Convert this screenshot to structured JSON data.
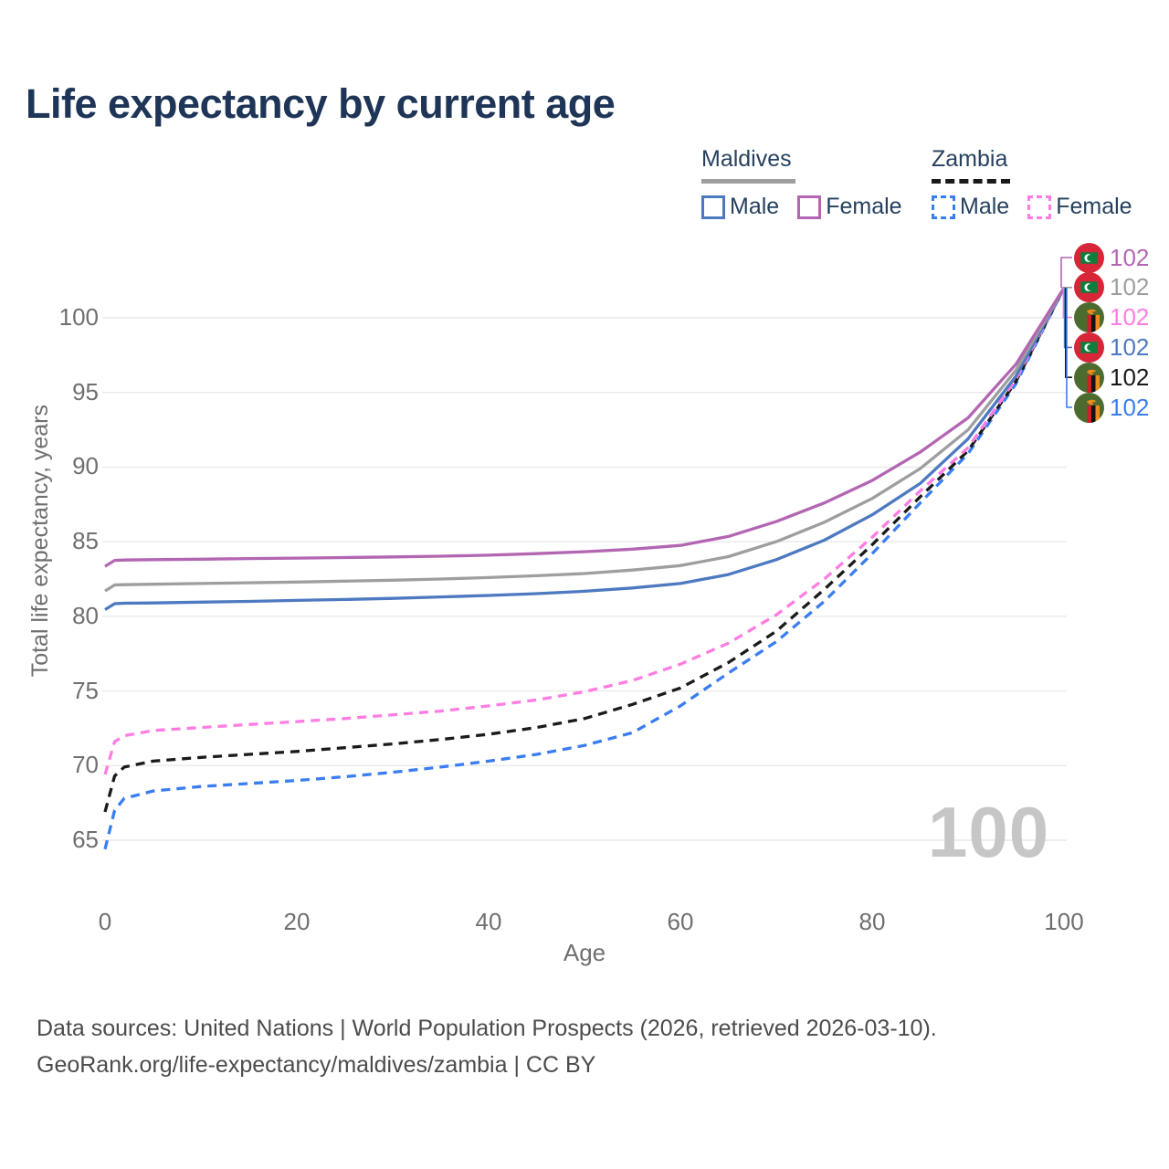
{
  "title": "Life expectancy by current age",
  "legend": {
    "groups": [
      {
        "label": "Maldives",
        "line_style": "solid",
        "line_color": "#9e9e9e",
        "items": [
          {
            "label": "Male",
            "color": "#4d79c0",
            "dashed": false
          },
          {
            "label": "Female",
            "color": "#b266b2",
            "dashed": false
          }
        ]
      },
      {
        "label": "Zambia",
        "line_style": "dashed",
        "line_color": "#1a1a1a",
        "items": [
          {
            "label": "Male",
            "color": "#3a7df0",
            "dashed": true
          },
          {
            "label": "Female",
            "color": "#ff7de2",
            "dashed": true
          }
        ]
      }
    ]
  },
  "chart_data": {
    "type": "line",
    "title": "Life expectancy by current age",
    "xlabel": "Age",
    "ylabel": "Total life expectancy, years",
    "xlim": [
      0,
      100
    ],
    "ylim": [
      63.5,
      102.5
    ],
    "x_ticks": [
      0,
      20,
      40,
      60,
      80,
      100
    ],
    "y_ticks": [
      65,
      70,
      75,
      80,
      85,
      90,
      95,
      100
    ],
    "grid": "horizontal",
    "legend_position": "top-right",
    "x": [
      0,
      1,
      2,
      5,
      10,
      15,
      20,
      25,
      30,
      35,
      40,
      45,
      50,
      55,
      60,
      65,
      70,
      75,
      80,
      85,
      90,
      95,
      100
    ],
    "series": [
      {
        "name": "Maldives Female",
        "country": "Maldives",
        "sex": "Female",
        "color": "#b266b2",
        "dashed": false,
        "values": [
          83.35,
          83.75,
          83.77,
          83.8,
          83.83,
          83.87,
          83.9,
          83.94,
          83.98,
          84.03,
          84.1,
          84.2,
          84.33,
          84.5,
          84.75,
          85.35,
          86.35,
          87.6,
          89.1,
          91.0,
          93.3,
          96.9,
          102
        ]
      },
      {
        "name": "Maldives Both sexes",
        "country": "Maldives",
        "sex": "Both",
        "color": "#9e9e9e",
        "dashed": false,
        "values": [
          81.7,
          82.1,
          82.12,
          82.15,
          82.2,
          82.25,
          82.3,
          82.36,
          82.42,
          82.5,
          82.6,
          82.72,
          82.87,
          83.1,
          83.4,
          84.0,
          85.0,
          86.3,
          87.9,
          89.9,
          92.5,
          96.5,
          102
        ]
      },
      {
        "name": "Maldives Male",
        "country": "Maldives",
        "sex": "Male",
        "color": "#4d79c0",
        "dashed": false,
        "values": [
          80.45,
          80.85,
          80.88,
          80.9,
          80.95,
          81.0,
          81.07,
          81.13,
          81.2,
          81.3,
          81.4,
          81.52,
          81.68,
          81.9,
          82.2,
          82.8,
          83.8,
          85.1,
          86.8,
          88.9,
          91.9,
          96.1,
          102
        ]
      },
      {
        "name": "Zambia Female",
        "country": "Zambia",
        "sex": "Female",
        "color": "#ff7de2",
        "dashed": true,
        "values": [
          69.4,
          71.6,
          72.0,
          72.35,
          72.55,
          72.75,
          72.95,
          73.15,
          73.4,
          73.65,
          74.0,
          74.4,
          74.95,
          75.7,
          76.8,
          78.2,
          80.1,
          82.5,
          85.3,
          88.4,
          91.3,
          95.9,
          102
        ]
      },
      {
        "name": "Zambia Both sexes",
        "country": "Zambia",
        "sex": "Both",
        "color": "#1a1a1a",
        "dashed": true,
        "values": [
          66.9,
          69.3,
          69.9,
          70.3,
          70.55,
          70.75,
          70.95,
          71.2,
          71.45,
          71.75,
          72.1,
          72.55,
          73.15,
          74.1,
          75.2,
          76.9,
          79.0,
          81.8,
          84.8,
          88.0,
          91.1,
          95.75,
          102
        ]
      },
      {
        "name": "Zambia Male",
        "country": "Zambia",
        "sex": "Male",
        "color": "#3a7df0",
        "dashed": true,
        "values": [
          64.4,
          67.0,
          67.8,
          68.3,
          68.6,
          68.8,
          69.0,
          69.25,
          69.55,
          69.9,
          70.3,
          70.75,
          71.35,
          72.2,
          74.0,
          76.2,
          78.3,
          81.0,
          84.2,
          87.6,
          90.9,
          95.6,
          102
        ]
      }
    ],
    "end_labels": [
      {
        "country": "Maldives",
        "sex": "Female",
        "value": "102",
        "color": "#b266b2"
      },
      {
        "country": "Maldives",
        "sex": "Both",
        "value": "102",
        "color": "#9e9e9e"
      },
      {
        "country": "Zambia",
        "sex": "Female",
        "value": "102",
        "color": "#ff7de2"
      },
      {
        "country": "Maldives",
        "sex": "Male",
        "value": "102",
        "color": "#4d79c0"
      },
      {
        "country": "Zambia",
        "sex": "Both",
        "value": "102",
        "color": "#1a1a1a"
      },
      {
        "country": "Zambia",
        "sex": "Male",
        "value": "102",
        "color": "#3a7df0"
      }
    ],
    "watermark": "100"
  },
  "footer": {
    "line1": "Data sources: United Nations | World Population Prospects (2026, retrieved 2026-03-10).",
    "line2": "GeoRank.org/life-expectancy/maldives/zambia | CC BY"
  }
}
